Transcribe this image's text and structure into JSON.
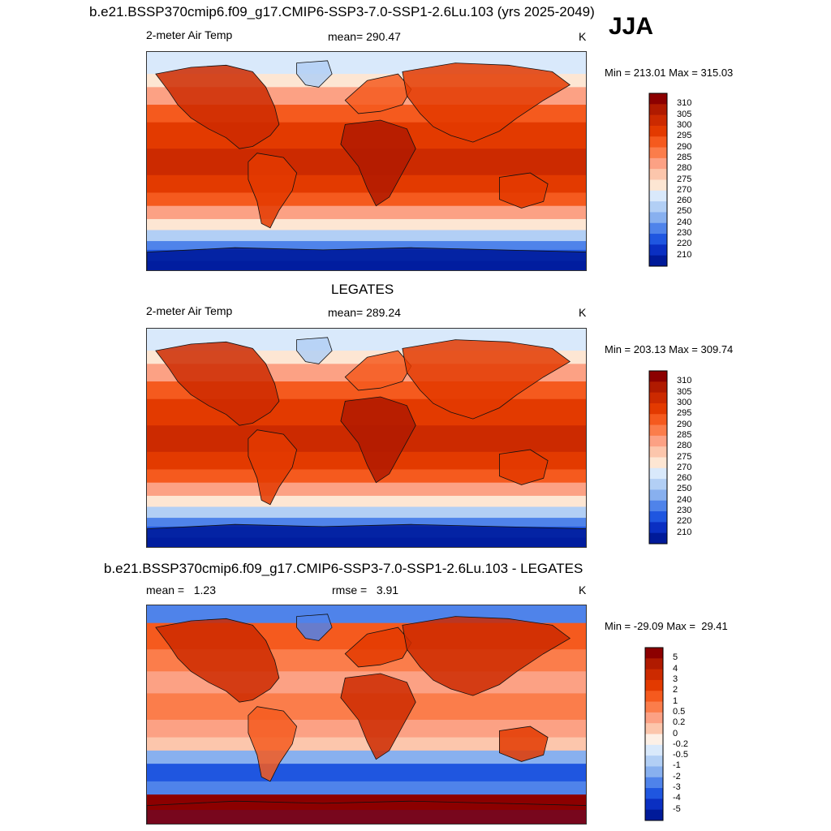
{
  "season": "JJA",
  "panels": [
    {
      "id": "model",
      "title": "b.e21.BSSP370cmip6.f09_g17.CMIP6-SSP3-7.0-SSP1-2.6Lu.103 (yrs 2025-2049)",
      "left_label": "2-meter Air Temp",
      "center_label": "mean= 290.47",
      "units": "K",
      "minmax": "Min = 213.01 Max = 315.03",
      "colorbar": {
        "labels": [
          "310",
          "305",
          "300",
          "295",
          "290",
          "285",
          "280",
          "275",
          "270",
          "260",
          "250",
          "240",
          "230",
          "220",
          "210"
        ],
        "colors": [
          "#8c0000",
          "#b01a00",
          "#cc2a00",
          "#e33a00",
          "#f55a1e",
          "#fb7d4b",
          "#fca184",
          "#fcc6ac",
          "#fde6d3",
          "#d9e9fb",
          "#b2cff5",
          "#88b0ef",
          "#4f83ea",
          "#1f56e0",
          "#0a2fc2",
          "#001a99"
        ]
      }
    },
    {
      "id": "obs",
      "title": "LEGATES",
      "left_label": "2-meter Air Temp",
      "center_label": "mean= 289.24",
      "units": "K",
      "minmax": "Min = 203.13 Max = 309.74",
      "colorbar": {
        "labels": [
          "310",
          "305",
          "300",
          "295",
          "290",
          "285",
          "280",
          "275",
          "270",
          "260",
          "250",
          "240",
          "230",
          "220",
          "210"
        ],
        "colors": [
          "#8c0000",
          "#b01a00",
          "#cc2a00",
          "#e33a00",
          "#f55a1e",
          "#fb7d4b",
          "#fca184",
          "#fcc6ac",
          "#fde6d3",
          "#d9e9fb",
          "#b2cff5",
          "#88b0ef",
          "#4f83ea",
          "#1f56e0",
          "#0a2fc2",
          "#001a99"
        ]
      }
    },
    {
      "id": "diff",
      "title": "b.e21.BSSP370cmip6.f09_g17.CMIP6-SSP3-7.0-SSP1-2.6Lu.103 - LEGATES",
      "left_label": "mean =   1.23",
      "center_label": "rmse =   3.91",
      "units": "K",
      "minmax": "Min = -29.09 Max =  29.41",
      "colorbar": {
        "labels": [
          "5",
          "4",
          "3",
          "2",
          "1",
          "0.5",
          "0.2",
          "0",
          "-0.2",
          "-0.5",
          "-1",
          "-2",
          "-3",
          "-4",
          "-5"
        ],
        "colors": [
          "#8c0000",
          "#b01a00",
          "#cc2a00",
          "#e33a00",
          "#f55a1e",
          "#fb7d4b",
          "#fca184",
          "#fcc6ac",
          "#fdf0e6",
          "#d9e9fb",
          "#b2cff5",
          "#88b0ef",
          "#4f83ea",
          "#1f56e0",
          "#0a2fc2",
          "#001a99"
        ]
      }
    }
  ]
}
